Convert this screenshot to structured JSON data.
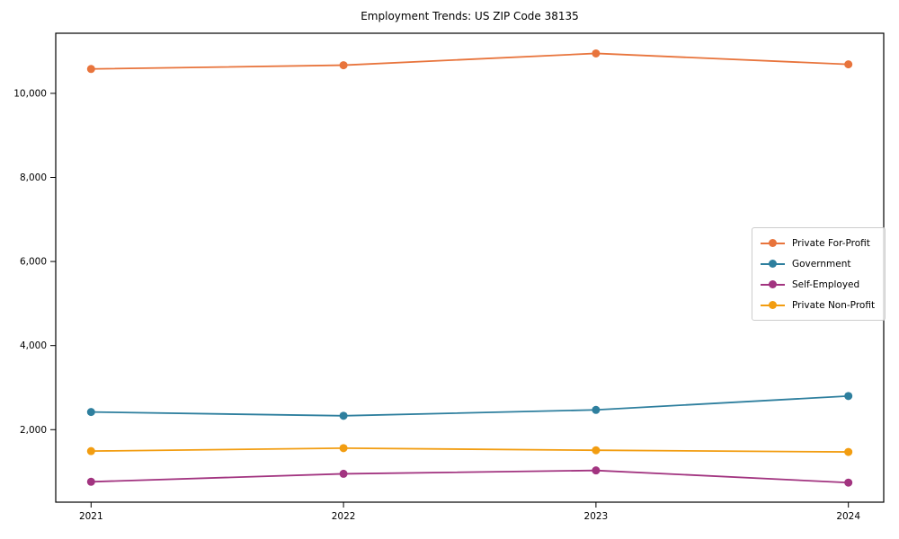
{
  "chart_data": {
    "type": "line",
    "title": "Employment Trends: US ZIP Code 38135",
    "xlabel": "",
    "ylabel": "",
    "grid": false,
    "legend_position": "center-right",
    "x": [
      2021,
      2022,
      2023,
      2024
    ],
    "x_tick_labels": [
      "2021",
      "2022",
      "2023",
      "2024"
    ],
    "y_ticks": [
      2000,
      4000,
      6000,
      8000,
      10000
    ],
    "y_tick_labels": [
      "2,000",
      "4,000",
      "6,000",
      "8,000",
      "10,000"
    ],
    "xlim": [
      2020.86,
      2024.14
    ],
    "ylim": [
      275,
      11430
    ],
    "series": [
      {
        "name": "Private For-Profit",
        "color": "#e8743c",
        "values": [
          10580,
          10670,
          10950,
          10690
        ]
      },
      {
        "name": "Government",
        "color": "#2e7f9e",
        "values": [
          2420,
          2330,
          2470,
          2800
        ]
      },
      {
        "name": "Self-Employed",
        "color": "#a23480",
        "values": [
          760,
          950,
          1030,
          740
        ]
      },
      {
        "name": "Private Non-Profit",
        "color": "#f29d11",
        "values": [
          1490,
          1560,
          1510,
          1470
        ]
      }
    ]
  }
}
